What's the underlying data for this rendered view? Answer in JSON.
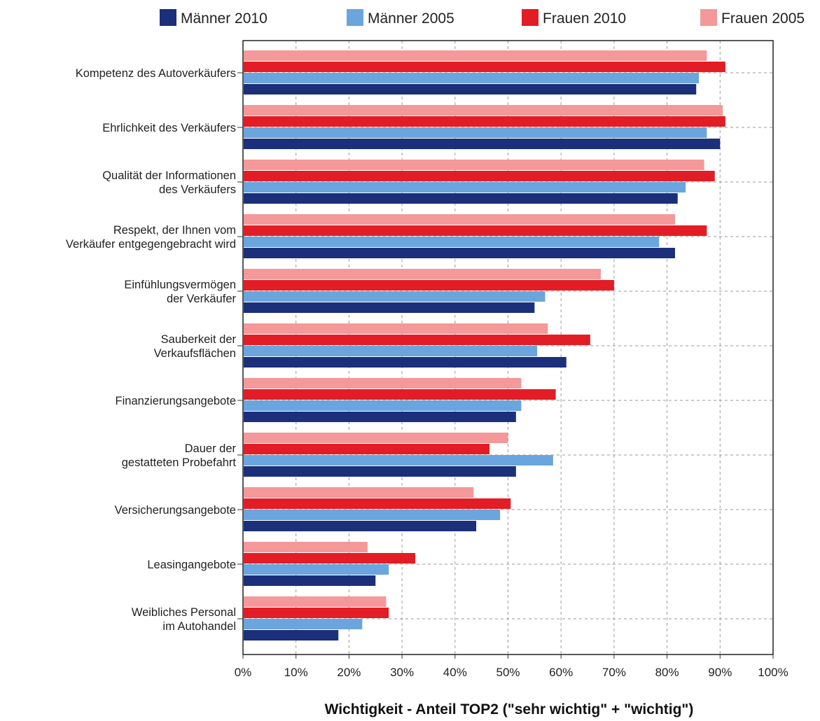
{
  "chart_data": {
    "type": "bar",
    "orientation": "horizontal",
    "xlabel": "Wichtigkeit - Anteil TOP2 (\"sehr wichtig\" + \"wichtig\")",
    "xlim": [
      0,
      100
    ],
    "x_ticks": [
      "0%",
      "10%",
      "20%",
      "30%",
      "40%",
      "50%",
      "60%",
      "70%",
      "80%",
      "90%",
      "100%"
    ],
    "grid": true,
    "legend_position": "top",
    "categories": [
      [
        "Kompetenz des Autoverkäufers"
      ],
      [
        "Ehrlichkeit des Verkäufers"
      ],
      [
        "Qualität der Informationen",
        "des Verkäufers"
      ],
      [
        "Respekt, der Ihnen vom",
        "Verkäufer entgegengebracht wird"
      ],
      [
        "Einfühlungsvermögen",
        "der Verkäufer"
      ],
      [
        "Sauberkeit der",
        "Verkaufsflächen"
      ],
      [
        "Finanzierungsangebote"
      ],
      [
        "Dauer der",
        "gestatteten Probefahrt"
      ],
      [
        "Versicherungsangebote"
      ],
      [
        "Leasingangebote"
      ],
      [
        "Weibliches Personal",
        "im Autohandel"
      ]
    ],
    "series": [
      {
        "name": "Frauen 2005",
        "color": "#f4989a",
        "values": [
          87.5,
          90.5,
          87,
          81.5,
          67.5,
          57.5,
          52.5,
          50,
          43.5,
          23.5,
          27
        ]
      },
      {
        "name": "Frauen 2010",
        "color": "#e21d25",
        "values": [
          91,
          91,
          89,
          87.5,
          70,
          65.5,
          59,
          46.5,
          50.5,
          32.5,
          27.5
        ]
      },
      {
        "name": "Männer 2005",
        "color": "#6aa5dd",
        "values": [
          86,
          87.5,
          83.5,
          78.5,
          57,
          55.5,
          52.5,
          58.5,
          48.5,
          27.5,
          22.5
        ]
      },
      {
        "name": "Männer 2010",
        "color": "#1b2f7a",
        "values": [
          85.5,
          90,
          82,
          81.5,
          55,
          61,
          51.5,
          51.5,
          44,
          25,
          18
        ]
      }
    ],
    "legend_order": [
      "Männer 2010",
      "Männer 2005",
      "Frauen 2010",
      "Frauen 2005"
    ]
  }
}
